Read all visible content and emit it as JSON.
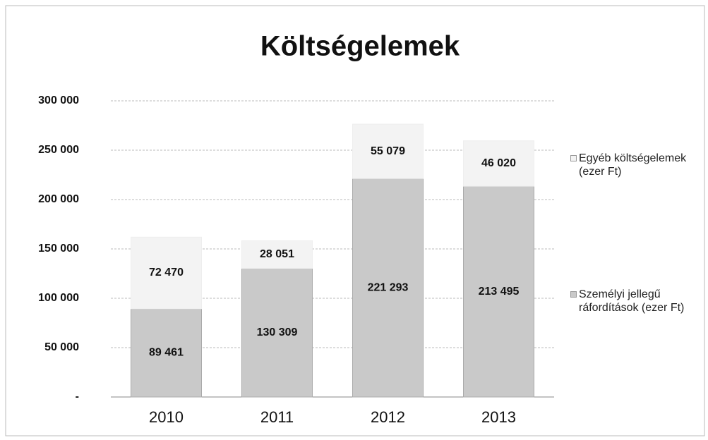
{
  "chart_data": {
    "type": "stacked-bar",
    "title": "Költségelemek",
    "categories": [
      "2010",
      "2011",
      "2012",
      "2013"
    ],
    "series": [
      {
        "name": "Személyi jellegű ráfordítások (ezer Ft)",
        "color": "#c9c9c9",
        "values": [
          89461,
          130309,
          221293,
          213495
        ],
        "value_labels": [
          "89 461",
          "130 309",
          "221 293",
          "213 495"
        ]
      },
      {
        "name": "Egyéb költségelemek (ezer Ft)",
        "color": "#f3f3f3",
        "values": [
          72470,
          28051,
          55079,
          46020
        ],
        "value_labels": [
          "72 470",
          "28 051",
          "55 079",
          "46 020"
        ]
      }
    ],
    "ylim": [
      0,
      300000
    ],
    "yticks": [
      {
        "value": 0,
        "label": "-"
      },
      {
        "value": 50000,
        "label": "50 000"
      },
      {
        "value": 100000,
        "label": "100 000"
      },
      {
        "value": 150000,
        "label": "150 000"
      },
      {
        "value": 200000,
        "label": "200 000"
      },
      {
        "value": 250000,
        "label": "250 000"
      },
      {
        "value": 300000,
        "label": "300 000"
      }
    ],
    "grid": true,
    "legend": "right"
  }
}
